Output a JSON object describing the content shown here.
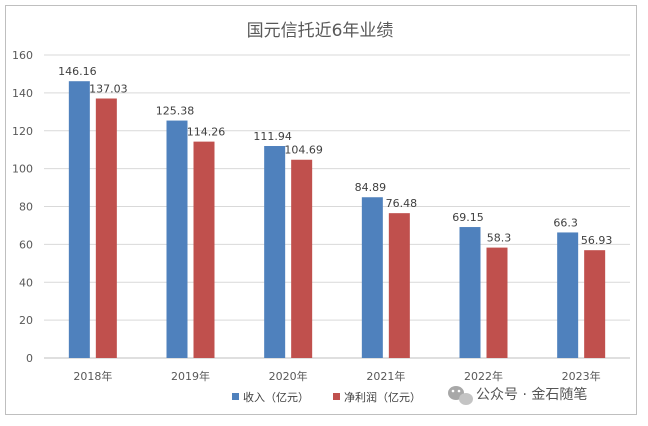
{
  "chart_data": {
    "type": "bar",
    "title": "国元信托近6年业绩",
    "categories": [
      "2018年",
      "2019年",
      "2020年",
      "2021年",
      "2022年",
      "2023年"
    ],
    "series": [
      {
        "name": "收入（亿元）",
        "color": "#4f81bd",
        "values": [
          146.16,
          125.38,
          111.94,
          84.89,
          69.15,
          66.3
        ]
      },
      {
        "name": "净利润（亿元）",
        "color": "#c0504d",
        "values": [
          137.03,
          114.26,
          104.69,
          76.48,
          58.3,
          56.93
        ]
      }
    ],
    "data_labels": [
      [
        "146.16",
        "125.38",
        "111.94",
        "84.89",
        "69.15",
        "66.3"
      ],
      [
        "137.03",
        "114.26",
        "104.69",
        "76.48",
        "58.3",
        "56.93"
      ]
    ],
    "ylim": [
      0,
      160
    ],
    "yticks": [
      0,
      20,
      40,
      60,
      80,
      100,
      120,
      140,
      160
    ],
    "grid": true,
    "legend_position": "bottom"
  },
  "watermark": {
    "text": "公众号 · 金石随笔",
    "icon": "wechat-icon"
  }
}
